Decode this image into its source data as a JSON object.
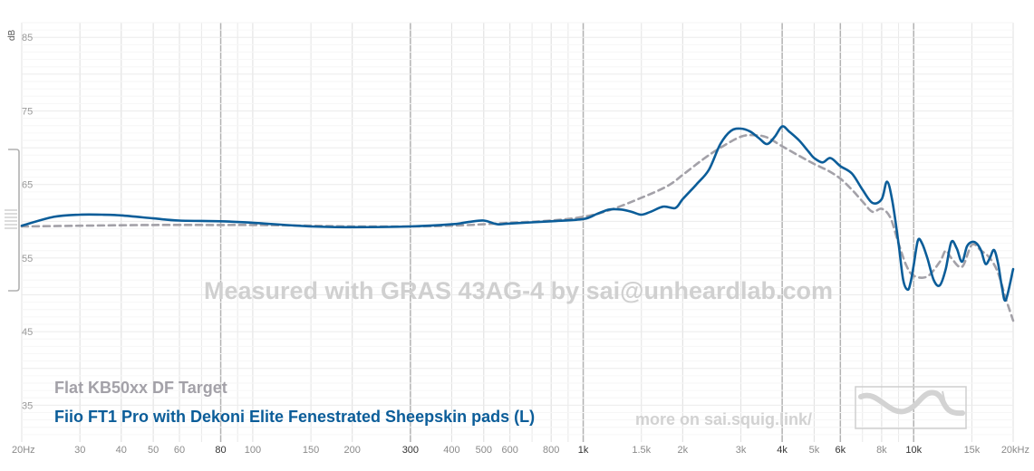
{
  "chart_data": {
    "type": "line",
    "xscale": "log",
    "xlim": [
      20,
      20000
    ],
    "ylim": [
      30,
      87
    ],
    "ylabel": "dB",
    "y_ticks": [
      "35",
      "45",
      "55",
      "65",
      "75",
      "85"
    ],
    "x_ticks": [
      {
        "v": 20,
        "label": "20Hz",
        "major": false
      },
      {
        "v": 30,
        "label": "30",
        "major": false
      },
      {
        "v": 40,
        "label": "40",
        "major": false
      },
      {
        "v": 50,
        "label": "50",
        "major": false
      },
      {
        "v": 60,
        "label": "60",
        "major": false
      },
      {
        "v": 80,
        "label": "80",
        "major": true
      },
      {
        "v": 100,
        "label": "100",
        "major": false
      },
      {
        "v": 150,
        "label": "150",
        "major": false
      },
      {
        "v": 200,
        "label": "200",
        "major": false
      },
      {
        "v": 300,
        "label": "300",
        "major": true
      },
      {
        "v": 400,
        "label": "400",
        "major": false
      },
      {
        "v": 500,
        "label": "500",
        "major": false
      },
      {
        "v": 600,
        "label": "600",
        "major": false
      },
      {
        "v": 800,
        "label": "800",
        "major": false
      },
      {
        "v": 1000,
        "label": "1k",
        "major": true
      },
      {
        "v": 1500,
        "label": "1.5k",
        "major": false
      },
      {
        "v": 2000,
        "label": "2k",
        "major": false
      },
      {
        "v": 3000,
        "label": "3k",
        "major": false
      },
      {
        "v": 4000,
        "label": "4k",
        "major": true
      },
      {
        "v": 5000,
        "label": "5k",
        "major": false
      },
      {
        "v": 6000,
        "label": "6k",
        "major": true
      },
      {
        "v": 8000,
        "label": "8k",
        "major": false
      },
      {
        "v": 10000,
        "label": "10k",
        "major": true
      },
      {
        "v": 15000,
        "label": "15k",
        "major": false
      },
      {
        "v": 20000,
        "label": "20kHz",
        "major": false
      }
    ],
    "watermark": "Measured with GRAS 43AG-4 by sai@unheardlab.com",
    "footer_text": "more on sai.squig.link/",
    "series": [
      {
        "name": "Flat KB50xx DF Target",
        "color": "#a3a1a8",
        "dashed": true,
        "x": [
          20,
          30,
          50,
          80,
          100,
          150,
          200,
          300,
          400,
          500,
          600,
          800,
          1000,
          1200,
          1500,
          1800,
          2000,
          2300,
          2600,
          3000,
          3300,
          3600,
          4000,
          4500,
          5000,
          5500,
          6000,
          6500,
          7000,
          7500,
          8000,
          8500,
          9000,
          9500,
          10000,
          11000,
          12000,
          12500,
          13000,
          14000,
          15000,
          16000,
          17000,
          18000,
          19000,
          20000
        ],
        "y": [
          59.3,
          59.4,
          59.5,
          59.5,
          59.5,
          59.4,
          59.3,
          59.3,
          59.4,
          59.6,
          59.8,
          60.1,
          60.6,
          61.5,
          63.2,
          64.8,
          66.3,
          68.4,
          70.0,
          71.5,
          71.7,
          71.4,
          70.2,
          68.9,
          67.8,
          66.9,
          65.8,
          64.3,
          62.7,
          61.3,
          61.7,
          60.5,
          57.0,
          54.0,
          52.6,
          52.5,
          54.5,
          56.0,
          55.0,
          53.8,
          56.8,
          56.0,
          55.0,
          53.0,
          49.5,
          46.5
        ]
      },
      {
        "name": "Fiio FT1 Pro with Dekoni Elite Fenestrated Sheepskin pads (L)",
        "color": "#0b5d99",
        "dashed": false,
        "x": [
          20,
          25,
          30,
          35,
          40,
          50,
          60,
          80,
          100,
          150,
          200,
          300,
          400,
          450,
          500,
          550,
          600,
          800,
          1000,
          1100,
          1200,
          1300,
          1400,
          1500,
          1600,
          1750,
          1900,
          2000,
          2200,
          2400,
          2600,
          2800,
          3000,
          3200,
          3400,
          3600,
          3800,
          4000,
          4200,
          4500,
          4800,
          5000,
          5300,
          5600,
          6000,
          6500,
          7000,
          7500,
          8000,
          8300,
          8600,
          9000,
          9300,
          9600,
          9800,
          10000,
          10300,
          10600,
          11000,
          11500,
          12000,
          12500,
          13000,
          13500,
          14000,
          14500,
          15000,
          15500,
          16000,
          16500,
          17000,
          17500,
          18000,
          18500,
          19000,
          20000
        ],
        "y": [
          59.4,
          60.6,
          60.9,
          60.9,
          60.8,
          60.4,
          60.1,
          60.0,
          59.8,
          59.3,
          59.2,
          59.3,
          59.6,
          59.9,
          60.1,
          59.6,
          59.7,
          60.0,
          60.3,
          61.0,
          61.6,
          61.6,
          61.3,
          60.9,
          61.3,
          62.0,
          61.8,
          63.0,
          65.0,
          67.0,
          70.5,
          72.3,
          72.6,
          72.2,
          71.3,
          70.5,
          71.5,
          72.9,
          72.2,
          71.0,
          69.5,
          68.6,
          68.0,
          68.6,
          67.5,
          66.5,
          64.3,
          62.5,
          63.0,
          65.4,
          63.0,
          57.0,
          52.0,
          50.7,
          51.8,
          54.0,
          57.4,
          57.0,
          55.0,
          52.0,
          51.3,
          53.5,
          57.2,
          56.3,
          54.5,
          56.6,
          57.2,
          57.0,
          56.0,
          54.2,
          55.0,
          56.1,
          54.3,
          51.0,
          49.3,
          53.5
        ]
      }
    ]
  }
}
